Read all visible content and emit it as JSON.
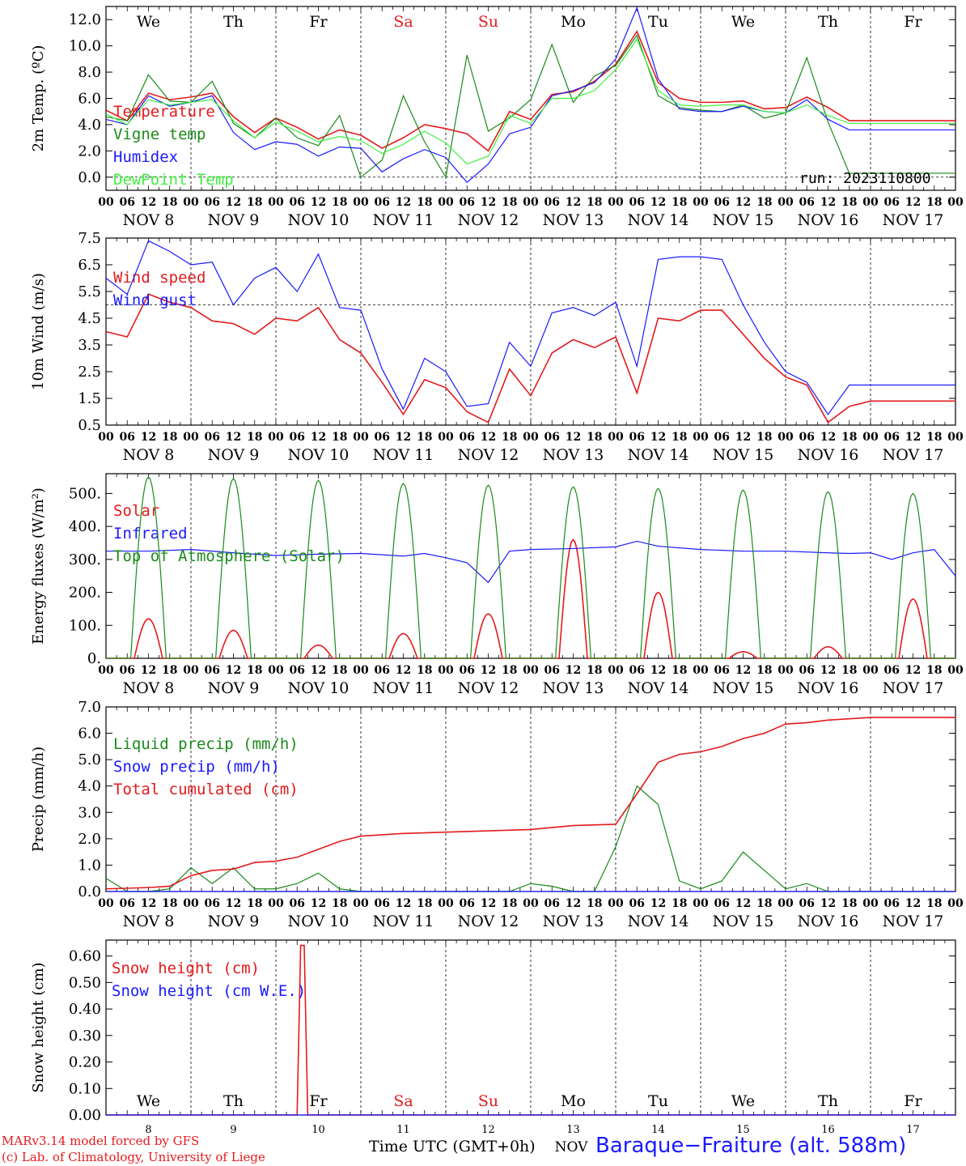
{
  "footer": {
    "credit_line1": "MARv3.14 model forced by GFS",
    "credit_line2": "(c) Lab. of Climatology, University of Liege",
    "time_axis_label": "Time UTC (GMT+0h)",
    "station": "Baraque−Fraiture (alt. 588m)",
    "run": "run: 2023110800"
  },
  "colors": {
    "red": "#e41a1c",
    "green": "#1a8a1a",
    "light_green": "#3ef03e",
    "blue": "#1a1aff",
    "black": "#000000"
  },
  "time_axis": {
    "hour_ticks": [
      "00",
      "06",
      "12",
      "18"
    ],
    "date_labels": [
      "NOV  8",
      "NOV  9",
      "NOV 10",
      "NOV 11",
      "NOV 12",
      "NOV 13",
      "NOV 14",
      "NOV 15",
      "NOV 16",
      "NOV 17"
    ],
    "weekdays": [
      "We",
      "Th",
      "Fr",
      "Sa",
      "Su",
      "Mo",
      "Tu",
      "We",
      "Th",
      "Fr"
    ],
    "weekend_indexes": [
      3,
      4
    ],
    "bottom_day_numbers": [
      "8",
      "9",
      "10",
      "11",
      "12",
      "13",
      "14",
      "15",
      "16",
      "17"
    ],
    "bottom_month": "NOV"
  },
  "chart_data": [
    {
      "type": "line",
      "ylabel": "2m Temp. (ºC)",
      "ylim": [
        -1,
        13
      ],
      "yticks": [
        "0.0",
        "2.0",
        "4.0",
        "6.0",
        "8.0",
        "10.0",
        "12.0"
      ],
      "ytick_values": [
        0,
        2,
        4,
        6,
        8,
        10,
        12
      ],
      "reference_line": 0,
      "x_unit": "hours since NOV 8 00 UTC",
      "series": [
        {
          "name": "Temperature",
          "color": "red",
          "x": [
            0,
            6,
            12,
            18,
            24,
            30,
            36,
            42,
            48,
            54,
            60,
            66,
            72,
            78,
            84,
            90,
            96,
            102,
            108,
            114,
            120,
            126,
            132,
            138,
            144,
            150,
            156,
            162,
            168,
            174,
            180,
            186,
            192,
            198,
            204,
            210,
            216,
            222,
            228,
            234,
            240
          ],
          "values": [
            5.1,
            4.3,
            6.4,
            5.9,
            6.1,
            6.4,
            4.6,
            3.4,
            4.5,
            3.8,
            2.9,
            3.6,
            3.2,
            2.2,
            3.0,
            4.0,
            3.7,
            3.3,
            2.0,
            5.0,
            4.4,
            6.3,
            6.5,
            7.3,
            8.6,
            11.1,
            7.2,
            6.0,
            5.7,
            5.7,
            5.8,
            5.2,
            5.3,
            6.1,
            5.3,
            4.3,
            4.3,
            4.3,
            4.3,
            4.3,
            4.3
          ]
        },
        {
          "name": "Vigne temp",
          "color": "green",
          "x": [
            0,
            6,
            12,
            18,
            24,
            30,
            36,
            42,
            48,
            54,
            60,
            66,
            72,
            78,
            84,
            90,
            96,
            102,
            108,
            114,
            120,
            126,
            132,
            138,
            144,
            150,
            156,
            162,
            168,
            174,
            180,
            186,
            192,
            198,
            204,
            210,
            216,
            222,
            228,
            234,
            240
          ],
          "values": [
            4.6,
            4.3,
            7.8,
            5.8,
            5.7,
            7.3,
            4.1,
            3.0,
            4.5,
            3.0,
            2.4,
            4.7,
            0.0,
            1.3,
            6.2,
            2.7,
            0.0,
            9.3,
            3.5,
            4.5,
            5.9,
            10.1,
            5.7,
            7.7,
            8.5,
            10.8,
            6.2,
            5.3,
            5.1,
            5.0,
            5.5,
            4.5,
            4.9,
            9.1,
            4.2,
            0.3,
            0.3,
            0.3,
            0.3,
            0.3,
            0.3
          ]
        },
        {
          "name": "Humidex",
          "color": "blue",
          "x": [
            0,
            6,
            12,
            18,
            24,
            30,
            36,
            42,
            48,
            54,
            60,
            66,
            72,
            78,
            84,
            90,
            96,
            102,
            108,
            114,
            120,
            126,
            132,
            138,
            144,
            150,
            156,
            162,
            168,
            174,
            180,
            186,
            192,
            198,
            204,
            210,
            216,
            222,
            228,
            234,
            240
          ],
          "values": [
            4.4,
            4.0,
            6.2,
            5.4,
            5.7,
            6.2,
            3.4,
            2.1,
            2.7,
            2.5,
            1.6,
            2.3,
            2.2,
            0.4,
            1.4,
            2.1,
            1.5,
            -0.4,
            1.0,
            3.3,
            3.8,
            6.2,
            6.6,
            7.2,
            9.0,
            12.9,
            7.5,
            5.2,
            5.0,
            5.0,
            5.4,
            5.0,
            4.9,
            5.9,
            4.4,
            3.6,
            3.6,
            3.6,
            3.6,
            3.6,
            3.6
          ]
        },
        {
          "name": "DewPoint Temp",
          "color": "light_green",
          "x": [
            0,
            6,
            12,
            18,
            24,
            30,
            36,
            42,
            48,
            54,
            60,
            66,
            72,
            78,
            84,
            90,
            96,
            102,
            108,
            114,
            120,
            126,
            132,
            138,
            144,
            150,
            156,
            162,
            168,
            174,
            180,
            186,
            192,
            198,
            204,
            210,
            216,
            222,
            228,
            234,
            240
          ],
          "values": [
            4.8,
            4.0,
            5.9,
            5.5,
            5.7,
            5.9,
            4.3,
            3.0,
            4.2,
            3.5,
            2.7,
            3.1,
            2.8,
            1.8,
            2.5,
            3.5,
            2.6,
            1.0,
            1.6,
            4.7,
            4.1,
            6.0,
            6.0,
            6.6,
            8.2,
            10.5,
            6.6,
            5.5,
            5.4,
            5.5,
            5.5,
            5.0,
            4.9,
            5.5,
            4.7,
            4.1,
            4.1,
            4.1,
            4.1,
            4.1,
            4.1
          ]
        }
      ]
    },
    {
      "type": "line",
      "ylabel": "10m Wind (m/s)",
      "ylim": [
        0.5,
        7.5
      ],
      "yticks": [
        "0.5",
        "1.5",
        "2.5",
        "3.5",
        "4.5",
        "5.5",
        "6.5",
        "7.5"
      ],
      "ytick_values": [
        0.5,
        1.5,
        2.5,
        3.5,
        4.5,
        5.5,
        6.5,
        7.5
      ],
      "reference_line": 5.0,
      "series": [
        {
          "name": "Wind speed",
          "color": "red",
          "x": [
            0,
            6,
            12,
            18,
            24,
            30,
            36,
            42,
            48,
            54,
            60,
            66,
            72,
            78,
            84,
            90,
            96,
            102,
            108,
            114,
            120,
            126,
            132,
            138,
            144,
            150,
            156,
            162,
            168,
            174,
            180,
            186,
            192,
            198,
            204,
            210,
            216,
            222,
            228,
            234,
            240
          ],
          "values": [
            4.0,
            3.8,
            5.4,
            5.1,
            4.9,
            4.4,
            4.3,
            3.9,
            4.5,
            4.4,
            4.9,
            3.7,
            3.2,
            2.1,
            0.9,
            2.2,
            1.9,
            1.0,
            0.6,
            2.6,
            1.6,
            3.2,
            3.7,
            3.4,
            3.8,
            1.7,
            4.5,
            4.4,
            4.8,
            4.8,
            3.9,
            3.0,
            2.3,
            2.0,
            0.6,
            1.2,
            1.4,
            1.4,
            1.4,
            1.4,
            1.4
          ]
        },
        {
          "name": "Wind gust",
          "color": "blue",
          "x": [
            0,
            6,
            12,
            18,
            24,
            30,
            36,
            42,
            48,
            54,
            60,
            66,
            72,
            78,
            84,
            90,
            96,
            102,
            108,
            114,
            120,
            126,
            132,
            138,
            144,
            150,
            156,
            162,
            168,
            174,
            180,
            186,
            192,
            198,
            204,
            210,
            216,
            222,
            228,
            234,
            240
          ],
          "values": [
            6.0,
            5.4,
            7.4,
            7.0,
            6.5,
            6.6,
            5.0,
            6.0,
            6.4,
            5.5,
            6.9,
            4.9,
            4.8,
            2.6,
            1.1,
            3.0,
            2.5,
            1.2,
            1.3,
            3.6,
            2.7,
            4.7,
            4.9,
            4.6,
            5.1,
            2.7,
            6.7,
            6.8,
            6.8,
            6.7,
            5.0,
            3.6,
            2.5,
            2.1,
            0.9,
            2.0,
            2.0,
            2.0,
            2.0,
            2.0,
            2.0
          ]
        }
      ]
    },
    {
      "type": "line",
      "ylabel": "Energy fluxes (W/m²)",
      "ylim": [
        0,
        560
      ],
      "yticks": [
        "0.",
        "100.",
        "200.",
        "300.",
        "400.",
        "500."
      ],
      "ytick_values": [
        0,
        100,
        200,
        300,
        400,
        500
      ],
      "day_peaks": {
        "solar": [
          120,
          85,
          40,
          75,
          135,
          360,
          200,
          20,
          35,
          180
        ],
        "top_of_atmosphere": [
          550,
          545,
          540,
          530,
          525,
          520,
          515,
          510,
          505,
          500
        ]
      },
      "series": [
        {
          "name": "Solar",
          "color": "red"
        },
        {
          "name": "Infrared",
          "color": "blue",
          "x": [
            0,
            12,
            24,
            36,
            48,
            60,
            72,
            84,
            90,
            96,
            102,
            108,
            114,
            120,
            132,
            144,
            150,
            156,
            168,
            180,
            192,
            204,
            210,
            216,
            222,
            228,
            234,
            240
          ],
          "values": [
            325,
            325,
            330,
            320,
            312,
            316,
            318,
            310,
            318,
            305,
            290,
            230,
            325,
            330,
            333,
            338,
            355,
            340,
            330,
            325,
            325,
            320,
            318,
            320,
            300,
            320,
            330,
            250
          ]
        },
        {
          "name": "Top of Atmosphere (Solar)",
          "color": "green"
        }
      ]
    },
    {
      "type": "line",
      "ylabel": "Precip (mm/h)",
      "ylim": [
        0,
        7.0
      ],
      "yticks": [
        "0.0",
        "1.0",
        "2.0",
        "3.0",
        "4.0",
        "5.0",
        "6.0",
        "7.0"
      ],
      "ytick_values": [
        0,
        1,
        2,
        3,
        4,
        5,
        6,
        7
      ],
      "series": [
        {
          "name": "Liquid precip (mm/h)",
          "color": "green",
          "x": [
            0,
            6,
            12,
            18,
            24,
            30,
            36,
            42,
            48,
            54,
            60,
            66,
            72,
            78,
            84,
            90,
            96,
            102,
            108,
            114,
            120,
            126,
            132,
            138,
            144,
            150,
            156,
            162,
            168,
            174,
            180,
            186,
            192,
            198,
            204,
            210,
            216,
            222,
            228,
            234,
            240
          ],
          "values": [
            0.5,
            0.0,
            0.0,
            0.1,
            0.9,
            0.3,
            0.9,
            0.1,
            0.1,
            0.3,
            0.7,
            0.1,
            0.0,
            0.0,
            0.0,
            0.0,
            0.0,
            0.0,
            0.0,
            0.0,
            0.3,
            0.2,
            0.0,
            0.0,
            1.7,
            4.0,
            3.3,
            0.4,
            0.1,
            0.4,
            1.5,
            0.8,
            0.1,
            0.3,
            0.0,
            0.0,
            0.0,
            0.0,
            0.0,
            0.0,
            0.0
          ]
        },
        {
          "name": "Snow precip (mm/h)",
          "color": "blue",
          "x": [
            0,
            240
          ],
          "values": [
            0.0,
            0.0
          ]
        },
        {
          "name": "Total cumulated (cm)",
          "color": "red",
          "x": [
            0,
            12,
            18,
            24,
            30,
            36,
            42,
            48,
            54,
            60,
            66,
            72,
            84,
            96,
            108,
            120,
            132,
            144,
            150,
            156,
            162,
            168,
            174,
            180,
            186,
            192,
            198,
            204,
            210,
            216,
            222,
            228,
            234,
            240
          ],
          "values": [
            0.1,
            0.15,
            0.2,
            0.6,
            0.8,
            0.85,
            1.1,
            1.15,
            1.3,
            1.6,
            1.9,
            2.1,
            2.2,
            2.25,
            2.3,
            2.35,
            2.5,
            2.55,
            3.7,
            4.9,
            5.2,
            5.3,
            5.5,
            5.8,
            6.0,
            6.35,
            6.4,
            6.5,
            6.55,
            6.6,
            6.6,
            6.6,
            6.6,
            6.6
          ]
        }
      ]
    },
    {
      "type": "line",
      "ylabel": "Snow height (cm)",
      "ylim": [
        0,
        0.66
      ],
      "yticks": [
        "0.00",
        "0.10",
        "0.20",
        "0.30",
        "0.40",
        "0.50",
        "0.60"
      ],
      "ytick_values": [
        0,
        0.1,
        0.2,
        0.3,
        0.4,
        0.5,
        0.6
      ],
      "series": [
        {
          "name": "Snow height (cm)",
          "color": "red",
          "x": [
            0,
            54,
            55,
            56,
            57,
            240
          ],
          "values": [
            0,
            0,
            0.64,
            0.64,
            0,
            0
          ]
        },
        {
          "name": "Snow height (cm W.E.)",
          "color": "blue",
          "x": [
            0,
            240
          ],
          "values": [
            0,
            0
          ]
        }
      ]
    }
  ]
}
